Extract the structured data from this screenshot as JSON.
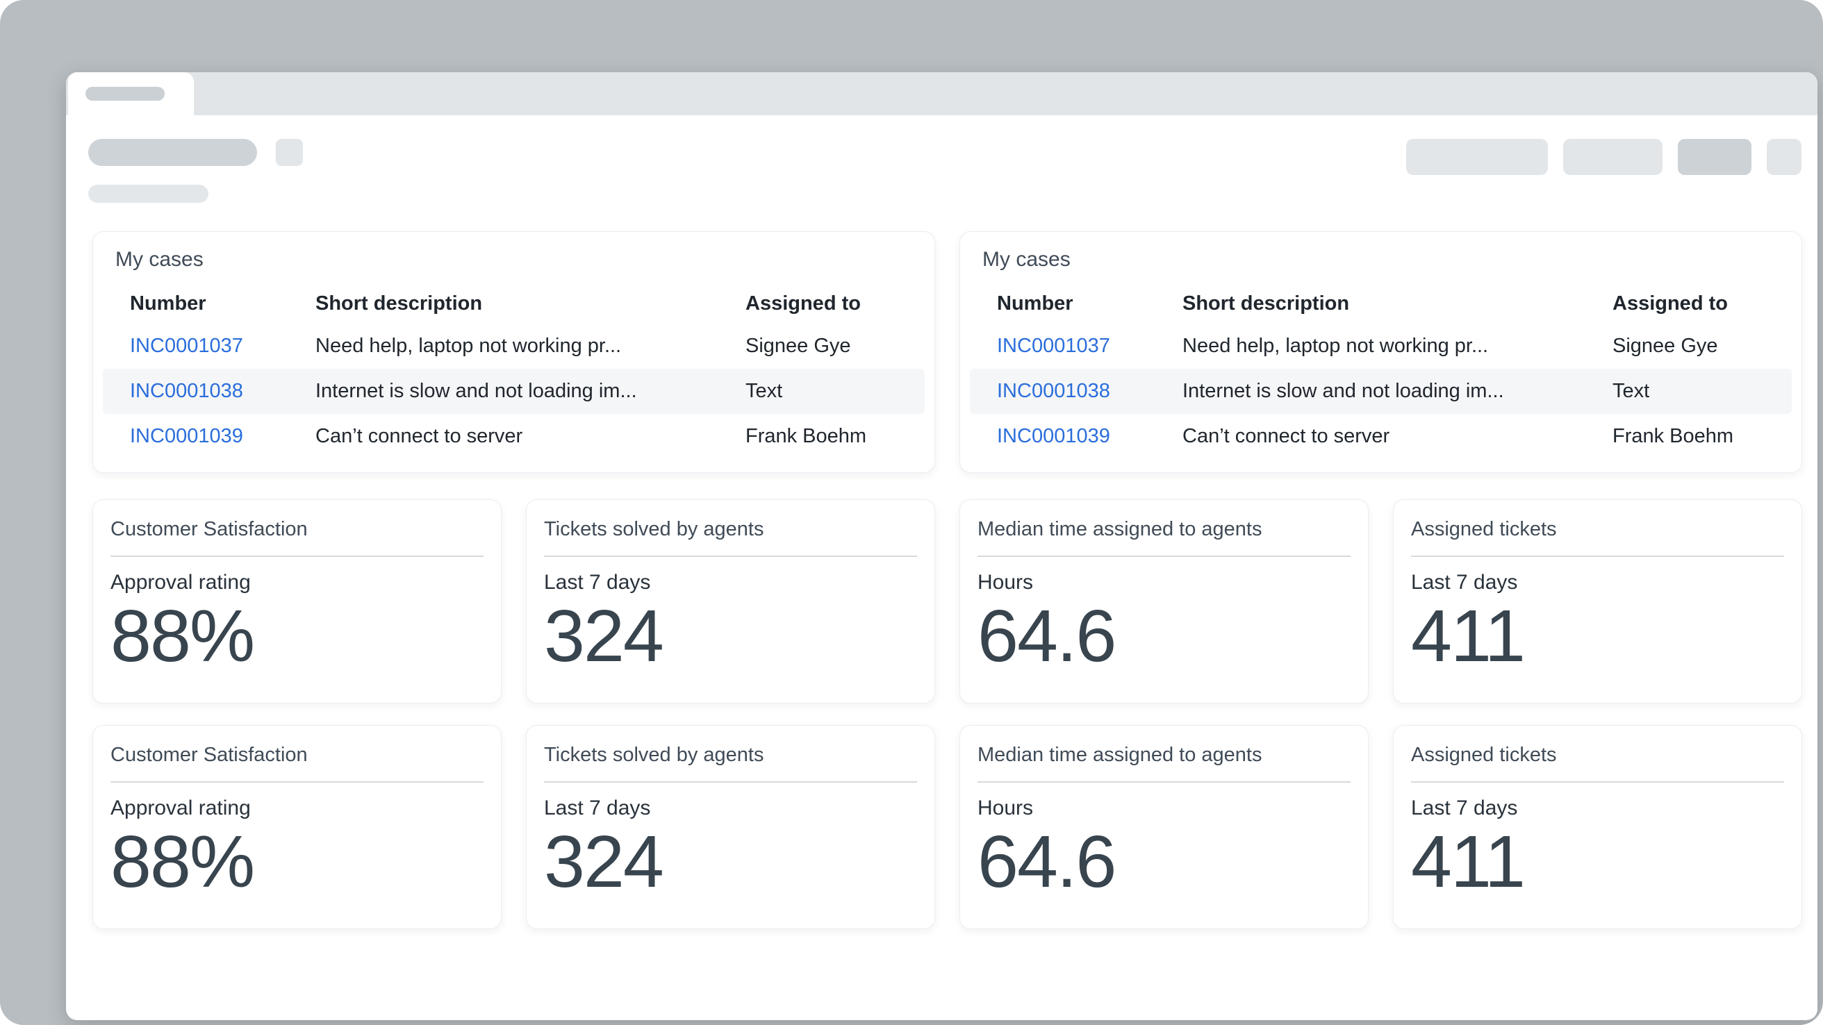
{
  "colors": {
    "frame_background": "#b7bdc1",
    "tab_strip": "#e2e5e8",
    "skeleton_dark": "#ced3d7",
    "skeleton_light": "#e3e6e9",
    "skeleton_button_dark": "#ccd2d6",
    "link_blue": "#2a6edb",
    "heading_slate": "#404b57",
    "table_text": "#20262d",
    "big_number": "#38444e",
    "row_stripe": "#f5f6f8"
  },
  "cases_panels": [
    {
      "title": "My cases",
      "columns": {
        "number": "Number",
        "short_description": "Short description",
        "assigned_to": "Assigned to"
      },
      "rows": [
        {
          "number": "INC0001037",
          "short_description": "Need help, laptop not working pr...",
          "assigned_to": "Signee Gye"
        },
        {
          "number": "INC0001038",
          "short_description": "Internet is slow and not loading im...",
          "assigned_to": "Text"
        },
        {
          "number": "INC0001039",
          "short_description": "Can’t connect to server",
          "assigned_to": "Frank Boehm"
        }
      ]
    },
    {
      "title": "My cases",
      "columns": {
        "number": "Number",
        "short_description": "Short description",
        "assigned_to": "Assigned to"
      },
      "rows": [
        {
          "number": "INC0001037",
          "short_description": "Need help, laptop not working pr...",
          "assigned_to": "Signee Gye"
        },
        {
          "number": "INC0001038",
          "short_description": "Internet is slow and not loading im...",
          "assigned_to": "Text"
        },
        {
          "number": "INC0001039",
          "short_description": "Can’t connect to server",
          "assigned_to": "Frank Boehm"
        }
      ]
    }
  ],
  "stat_rows": [
    [
      {
        "title": "Customer Satisfaction",
        "label": "Approval rating",
        "value": "88%"
      },
      {
        "title": "Tickets solved by agents",
        "label": "Last 7 days",
        "value": "324"
      },
      {
        "title": "Median time assigned to agents",
        "label": "Hours",
        "value": "64.6"
      },
      {
        "title": "Assigned tickets",
        "label": "Last 7 days",
        "value": "411"
      }
    ],
    [
      {
        "title": "Customer Satisfaction",
        "label": "Approval rating",
        "value": "88%"
      },
      {
        "title": "Tickets solved by agents",
        "label": "Last 7 days",
        "value": "324"
      },
      {
        "title": "Median time assigned to agents",
        "label": "Hours",
        "value": "64.6"
      },
      {
        "title": "Assigned tickets",
        "label": "Last 7 days",
        "value": "411"
      }
    ]
  ]
}
